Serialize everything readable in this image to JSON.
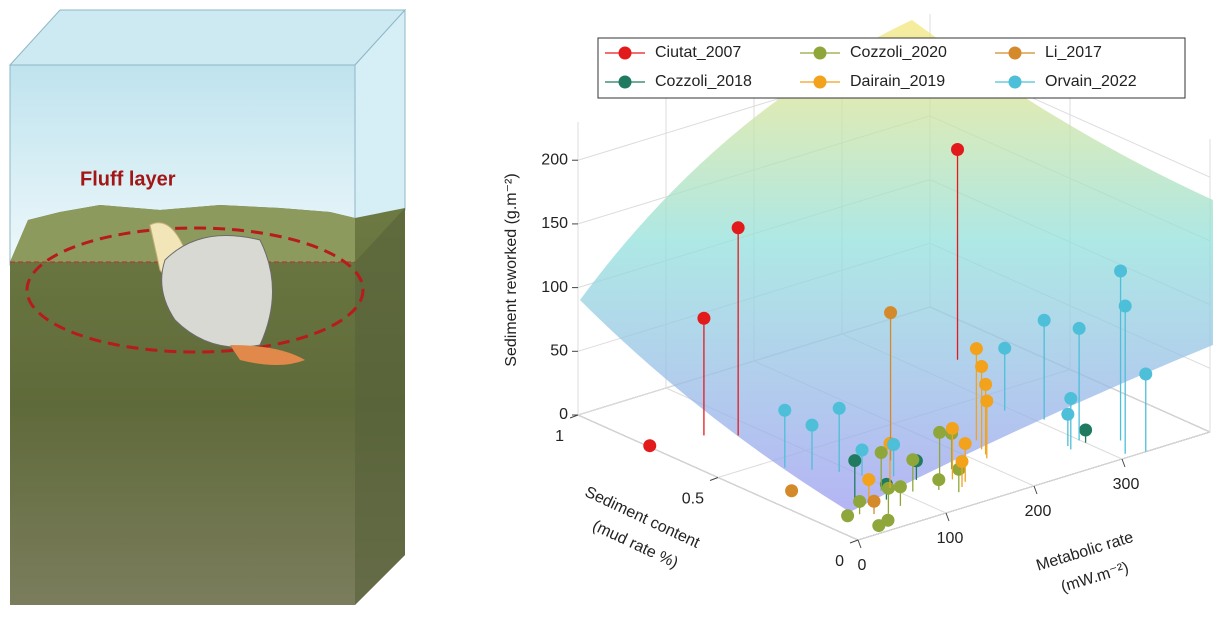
{
  "illustration": {
    "label": "Fluff layer"
  },
  "chart_data": {
    "type": "scatter3d-stem",
    "xlabel": [
      "Metabolic rate",
      "(mW.m⁻²)"
    ],
    "ylabel": [
      "Sediment content",
      "(mud rate %)"
    ],
    "zlabel": "Sediment reworked (g.m⁻²)",
    "xlim": [
      0,
      400
    ],
    "xticks": [
      0,
      100,
      200,
      300
    ],
    "ylim": [
      0,
      1
    ],
    "yticks": [
      0,
      0.5,
      1
    ],
    "zlim": [
      0,
      230
    ],
    "zticks": [
      0,
      50,
      100,
      150,
      200
    ],
    "grid": true,
    "legend": "top",
    "series": [
      {
        "name": "Ciutat_2007",
        "color": "#e31a1c",
        "x": [
          339,
          77,
          54,
          2
        ],
        "y": [
          0.71,
          0.67,
          0.72,
          0.75
        ],
        "z": [
          165,
          163,
          92,
          0
        ]
      },
      {
        "name": "Cozzoli_2018",
        "color": "#1f7a5f",
        "x": [
          300,
          60,
          80,
          130
        ],
        "y": [
          0.13,
          0.2,
          0.15,
          0.2
        ],
        "z": [
          10,
          30,
          12,
          15
        ]
      },
      {
        "name": "Cozzoli_2020",
        "color": "#8fa63a",
        "x": [
          20,
          40,
          60,
          80,
          110,
          130,
          90,
          150,
          50,
          30,
          140,
          170
        ],
        "y": [
          0.1,
          0.12,
          0.08,
          0.1,
          0.15,
          0.12,
          0.2,
          0.18,
          0.05,
          0.02,
          0.08,
          0.2
        ],
        "z": [
          5,
          10,
          20,
          15,
          25,
          8,
          30,
          35,
          0,
          3,
          18,
          28
        ]
      },
      {
        "name": "Dairain_2019",
        "color": "#f2a21b",
        "x": [
          160,
          155,
          150,
          210,
          215,
          220,
          230,
          60,
          100
        ],
        "y": [
          0.12,
          0.15,
          0.1,
          0.2,
          0.22,
          0.25,
          0.3,
          0.15,
          0.2
        ],
        "z": [
          30,
          40,
          20,
          45,
          55,
          65,
          72,
          20,
          35
        ]
      },
      {
        "name": "Li_2017",
        "color": "#d48a2b",
        "x": [
          142,
          20,
          50
        ],
        "y": [
          0.33,
          0.3,
          0.1
        ],
        "z": [
          116,
          5,
          10
        ]
      },
      {
        "name": "Orvain_2022",
        "color": "#4dbfd9",
        "x": [
          310,
          327,
          299,
          307,
          294,
          327,
          280,
          283,
          60,
          75,
          90,
          100,
          120
        ],
        "y": [
          0.02,
          0.09,
          0.15,
          0.3,
          0.4,
          0.0,
          0.12,
          0.14,
          0.45,
          0.4,
          0.35,
          0.3,
          0.25
        ],
        "z": [
          116,
          133,
          88,
          78,
          49,
          61,
          40,
          25,
          45,
          35,
          50,
          20,
          25
        ]
      }
    ]
  }
}
